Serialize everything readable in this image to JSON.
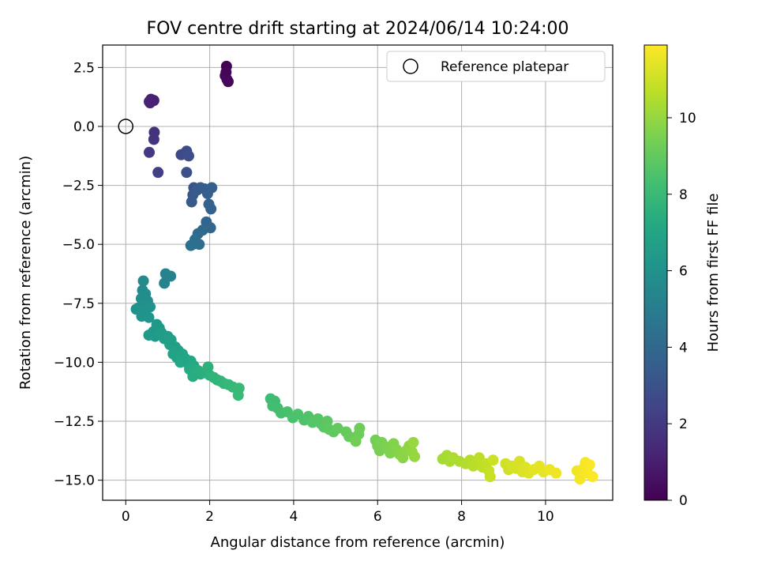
{
  "chart_data": {
    "type": "scatter",
    "title": "FOV centre drift starting at 2024/06/14 10:24:00",
    "xlabel": "Angular distance from reference (arcmin)",
    "ylabel": "Rotation from reference (arcmin)",
    "xlim": [
      -0.55,
      11.6
    ],
    "ylim": [
      -15.85,
      3.45
    ],
    "xticks": [
      0,
      2,
      4,
      6,
      8,
      10
    ],
    "xtick_labels": [
      "0",
      "2",
      "4",
      "6",
      "8",
      "10"
    ],
    "yticks": [
      2.5,
      0.0,
      -2.5,
      -5.0,
      -7.5,
      -10.0,
      -12.5,
      -15.0
    ],
    "ytick_labels": [
      "2.5",
      "0.0",
      "−2.5",
      "−5.0",
      "−7.5",
      "−10.0",
      "−12.5",
      "−15.0"
    ],
    "grid": true,
    "legend": {
      "position": "top-right",
      "entries": [
        {
          "label": "Reference platepar",
          "marker": "open-circle"
        }
      ]
    },
    "reference_point": {
      "x": 0.0,
      "y": 0.0
    },
    "colorbar": {
      "label": "Hours from first FF file",
      "range": [
        0,
        11.9
      ],
      "ticks": [
        0,
        2,
        4,
        6,
        8,
        10
      ],
      "tick_labels": [
        "0",
        "2",
        "4",
        "6",
        "8",
        "10"
      ],
      "colormap": "viridis"
    },
    "points": [
      {
        "x": 2.4,
        "y": 2.55,
        "h": 0.05
      },
      {
        "x": 2.39,
        "y": 2.3,
        "h": 0.1
      },
      {
        "x": 2.37,
        "y": 2.15,
        "h": 0.15
      },
      {
        "x": 2.41,
        "y": 2.0,
        "h": 0.2
      },
      {
        "x": 2.44,
        "y": 1.9,
        "h": 0.25
      },
      {
        "x": 0.6,
        "y": 1.15,
        "h": 1.0
      },
      {
        "x": 0.67,
        "y": 1.1,
        "h": 1.05
      },
      {
        "x": 0.58,
        "y": 1.0,
        "h": 1.1
      },
      {
        "x": 0.56,
        "y": 1.05,
        "h": 1.15
      },
      {
        "x": 0.68,
        "y": -0.25,
        "h": 1.7
      },
      {
        "x": 0.67,
        "y": -0.55,
        "h": 1.8
      },
      {
        "x": 0.56,
        "y": -1.1,
        "h": 2.0
      },
      {
        "x": 0.77,
        "y": -1.95,
        "h": 2.2
      },
      {
        "x": 1.32,
        "y": -1.2,
        "h": 2.6
      },
      {
        "x": 1.4,
        "y": -1.15,
        "h": 2.7
      },
      {
        "x": 1.45,
        "y": -1.05,
        "h": 2.75
      },
      {
        "x": 1.5,
        "y": -1.25,
        "h": 2.8
      },
      {
        "x": 1.45,
        "y": -1.95,
        "h": 2.9
      },
      {
        "x": 1.62,
        "y": -2.6,
        "h": 3.1
      },
      {
        "x": 1.6,
        "y": -2.9,
        "h": 3.2
      },
      {
        "x": 1.57,
        "y": -3.2,
        "h": 3.3
      },
      {
        "x": 1.7,
        "y": -2.7,
        "h": 3.4
      },
      {
        "x": 1.78,
        "y": -2.6,
        "h": 3.45
      },
      {
        "x": 1.88,
        "y": -2.65,
        "h": 3.5
      },
      {
        "x": 1.95,
        "y": -2.85,
        "h": 3.55
      },
      {
        "x": 2.05,
        "y": -2.6,
        "h": 3.6
      },
      {
        "x": 1.98,
        "y": -3.3,
        "h": 3.7
      },
      {
        "x": 2.03,
        "y": -3.5,
        "h": 3.75
      },
      {
        "x": 1.92,
        "y": -4.05,
        "h": 3.85
      },
      {
        "x": 2.02,
        "y": -4.3,
        "h": 3.9
      },
      {
        "x": 1.83,
        "y": -4.4,
        "h": 4.0
      },
      {
        "x": 1.72,
        "y": -4.55,
        "h": 4.1
      },
      {
        "x": 1.65,
        "y": -4.8,
        "h": 4.25
      },
      {
        "x": 1.6,
        "y": -5.0,
        "h": 4.3
      },
      {
        "x": 1.75,
        "y": -5.0,
        "h": 4.35
      },
      {
        "x": 1.55,
        "y": -5.05,
        "h": 4.4
      },
      {
        "x": 1.07,
        "y": -6.35,
        "h": 5.2
      },
      {
        "x": 0.95,
        "y": -6.25,
        "h": 5.25
      },
      {
        "x": 0.92,
        "y": -6.65,
        "h": 5.3
      },
      {
        "x": 0.42,
        "y": -6.55,
        "h": 5.6
      },
      {
        "x": 0.4,
        "y": -6.95,
        "h": 5.65
      },
      {
        "x": 0.47,
        "y": -7.1,
        "h": 5.7
      },
      {
        "x": 0.37,
        "y": -7.3,
        "h": 5.75
      },
      {
        "x": 0.52,
        "y": -7.4,
        "h": 5.8
      },
      {
        "x": 0.43,
        "y": -7.55,
        "h": 5.85
      },
      {
        "x": 0.3,
        "y": -7.7,
        "h": 5.9
      },
      {
        "x": 0.25,
        "y": -7.75,
        "h": 5.95
      },
      {
        "x": 0.58,
        "y": -7.65,
        "h": 6.0
      },
      {
        "x": 0.45,
        "y": -7.85,
        "h": 6.05
      },
      {
        "x": 0.38,
        "y": -8.05,
        "h": 6.1
      },
      {
        "x": 0.55,
        "y": -8.1,
        "h": 6.15
      },
      {
        "x": 0.66,
        "y": -8.7,
        "h": 6.2
      },
      {
        "x": 0.74,
        "y": -8.4,
        "h": 6.3
      },
      {
        "x": 0.8,
        "y": -8.55,
        "h": 6.35
      },
      {
        "x": 0.55,
        "y": -8.85,
        "h": 6.4
      },
      {
        "x": 0.7,
        "y": -8.9,
        "h": 6.45
      },
      {
        "x": 0.85,
        "y": -8.75,
        "h": 6.5
      },
      {
        "x": 0.92,
        "y": -9.0,
        "h": 6.55
      },
      {
        "x": 1.0,
        "y": -8.9,
        "h": 6.6
      },
      {
        "x": 1.08,
        "y": -9.05,
        "h": 6.65
      },
      {
        "x": 1.05,
        "y": -9.25,
        "h": 6.7
      },
      {
        "x": 1.18,
        "y": -9.35,
        "h": 6.75
      },
      {
        "x": 1.25,
        "y": -9.5,
        "h": 6.8
      },
      {
        "x": 1.13,
        "y": -9.65,
        "h": 6.85
      },
      {
        "x": 1.22,
        "y": -9.8,
        "h": 6.9
      },
      {
        "x": 1.35,
        "y": -9.65,
        "h": 6.95
      },
      {
        "x": 1.42,
        "y": -9.85,
        "h": 7.0
      },
      {
        "x": 1.3,
        "y": -10.0,
        "h": 7.05
      },
      {
        "x": 1.48,
        "y": -10.05,
        "h": 7.1
      },
      {
        "x": 1.55,
        "y": -9.95,
        "h": 7.15
      },
      {
        "x": 1.62,
        "y": -10.15,
        "h": 7.2
      },
      {
        "x": 1.52,
        "y": -10.3,
        "h": 7.25
      },
      {
        "x": 1.68,
        "y": -10.4,
        "h": 7.3
      },
      {
        "x": 1.6,
        "y": -10.6,
        "h": 7.35
      },
      {
        "x": 1.78,
        "y": -10.5,
        "h": 7.4
      },
      {
        "x": 1.72,
        "y": -10.35,
        "h": 7.45
      },
      {
        "x": 1.9,
        "y": -10.45,
        "h": 7.5
      },
      {
        "x": 1.96,
        "y": -10.2,
        "h": 7.55
      },
      {
        "x": 2.0,
        "y": -10.55,
        "h": 7.6
      },
      {
        "x": 2.1,
        "y": -10.65,
        "h": 7.65
      },
      {
        "x": 2.18,
        "y": -10.75,
        "h": 7.7
      },
      {
        "x": 2.26,
        "y": -10.8,
        "h": 7.75
      },
      {
        "x": 2.34,
        "y": -10.9,
        "h": 7.8
      },
      {
        "x": 2.45,
        "y": -10.95,
        "h": 7.85
      },
      {
        "x": 2.55,
        "y": -11.05,
        "h": 7.9
      },
      {
        "x": 2.7,
        "y": -11.1,
        "h": 7.95
      },
      {
        "x": 2.68,
        "y": -11.4,
        "h": 8.0
      },
      {
        "x": 3.45,
        "y": -11.55,
        "h": 8.15
      },
      {
        "x": 3.55,
        "y": -11.65,
        "h": 8.2
      },
      {
        "x": 3.5,
        "y": -11.85,
        "h": 8.25
      },
      {
        "x": 3.62,
        "y": -11.95,
        "h": 8.3
      },
      {
        "x": 3.7,
        "y": -12.15,
        "h": 8.35
      },
      {
        "x": 3.85,
        "y": -12.1,
        "h": 8.4
      },
      {
        "x": 3.98,
        "y": -12.35,
        "h": 8.45
      },
      {
        "x": 4.1,
        "y": -12.2,
        "h": 8.5
      },
      {
        "x": 4.25,
        "y": -12.45,
        "h": 8.55
      },
      {
        "x": 4.35,
        "y": -12.3,
        "h": 8.6
      },
      {
        "x": 4.45,
        "y": -12.55,
        "h": 8.65
      },
      {
        "x": 4.58,
        "y": -12.4,
        "h": 8.7
      },
      {
        "x": 4.65,
        "y": -12.6,
        "h": 8.75
      },
      {
        "x": 4.72,
        "y": -12.75,
        "h": 8.8
      },
      {
        "x": 4.8,
        "y": -12.5,
        "h": 8.85
      },
      {
        "x": 4.85,
        "y": -12.85,
        "h": 8.9
      },
      {
        "x": 4.95,
        "y": -12.95,
        "h": 8.95
      },
      {
        "x": 5.05,
        "y": -12.8,
        "h": 9.0
      },
      {
        "x": 5.25,
        "y": -12.95,
        "h": 9.05
      },
      {
        "x": 5.32,
        "y": -13.15,
        "h": 9.1
      },
      {
        "x": 5.45,
        "y": -13.2,
        "h": 9.15
      },
      {
        "x": 5.55,
        "y": -13.05,
        "h": 9.2
      },
      {
        "x": 5.57,
        "y": -12.8,
        "h": 9.25
      },
      {
        "x": 5.48,
        "y": -13.35,
        "h": 9.3
      },
      {
        "x": 5.95,
        "y": -13.3,
        "h": 9.35
      },
      {
        "x": 6.0,
        "y": -13.55,
        "h": 9.4
      },
      {
        "x": 6.05,
        "y": -13.75,
        "h": 9.45
      },
      {
        "x": 6.1,
        "y": -13.4,
        "h": 9.5
      },
      {
        "x": 6.22,
        "y": -13.6,
        "h": 9.55
      },
      {
        "x": 6.3,
        "y": -13.85,
        "h": 9.6
      },
      {
        "x": 6.38,
        "y": -13.45,
        "h": 9.65
      },
      {
        "x": 6.45,
        "y": -13.7,
        "h": 9.7
      },
      {
        "x": 6.52,
        "y": -13.9,
        "h": 9.75
      },
      {
        "x": 6.6,
        "y": -14.05,
        "h": 9.8
      },
      {
        "x": 6.68,
        "y": -13.75,
        "h": 9.85
      },
      {
        "x": 6.75,
        "y": -13.55,
        "h": 9.9
      },
      {
        "x": 6.82,
        "y": -13.8,
        "h": 9.95
      },
      {
        "x": 6.88,
        "y": -14.0,
        "h": 10.0
      },
      {
        "x": 6.85,
        "y": -13.4,
        "h": 10.05
      },
      {
        "x": 7.55,
        "y": -14.1,
        "h": 10.25
      },
      {
        "x": 7.65,
        "y": -13.95,
        "h": 10.3
      },
      {
        "x": 7.72,
        "y": -14.2,
        "h": 10.35
      },
      {
        "x": 7.8,
        "y": -14.05,
        "h": 10.4
      },
      {
        "x": 7.95,
        "y": -14.2,
        "h": 10.45
      },
      {
        "x": 8.1,
        "y": -14.3,
        "h": 10.5
      },
      {
        "x": 8.2,
        "y": -14.15,
        "h": 10.55
      },
      {
        "x": 8.28,
        "y": -14.4,
        "h": 10.6
      },
      {
        "x": 8.35,
        "y": -14.25,
        "h": 10.65
      },
      {
        "x": 8.42,
        "y": -14.05,
        "h": 10.7
      },
      {
        "x": 8.5,
        "y": -14.45,
        "h": 10.75
      },
      {
        "x": 8.58,
        "y": -14.3,
        "h": 10.8
      },
      {
        "x": 8.65,
        "y": -14.6,
        "h": 10.85
      },
      {
        "x": 8.68,
        "y": -14.85,
        "h": 10.9
      },
      {
        "x": 8.75,
        "y": -14.15,
        "h": 10.95
      },
      {
        "x": 9.05,
        "y": -14.3,
        "h": 11.0
      },
      {
        "x": 9.12,
        "y": -14.55,
        "h": 11.05
      },
      {
        "x": 9.2,
        "y": -14.4,
        "h": 11.1
      },
      {
        "x": 9.3,
        "y": -14.5,
        "h": 11.15
      },
      {
        "x": 9.38,
        "y": -14.2,
        "h": 11.2
      },
      {
        "x": 9.45,
        "y": -14.65,
        "h": 11.25
      },
      {
        "x": 9.52,
        "y": -14.45,
        "h": 11.3
      },
      {
        "x": 9.6,
        "y": -14.7,
        "h": 11.35
      },
      {
        "x": 9.72,
        "y": -14.55,
        "h": 11.4
      },
      {
        "x": 9.85,
        "y": -14.4,
        "h": 11.45
      },
      {
        "x": 9.95,
        "y": -14.65,
        "h": 11.5
      },
      {
        "x": 10.1,
        "y": -14.55,
        "h": 11.55
      },
      {
        "x": 10.25,
        "y": -14.7,
        "h": 11.6
      },
      {
        "x": 10.75,
        "y": -14.6,
        "h": 11.65
      },
      {
        "x": 10.82,
        "y": -14.95,
        "h": 11.7
      },
      {
        "x": 10.9,
        "y": -14.5,
        "h": 11.75
      },
      {
        "x": 10.95,
        "y": -14.25,
        "h": 11.78
      },
      {
        "x": 11.0,
        "y": -14.7,
        "h": 11.82
      },
      {
        "x": 11.05,
        "y": -14.35,
        "h": 11.85
      },
      {
        "x": 11.12,
        "y": -14.85,
        "h": 11.88
      }
    ]
  }
}
